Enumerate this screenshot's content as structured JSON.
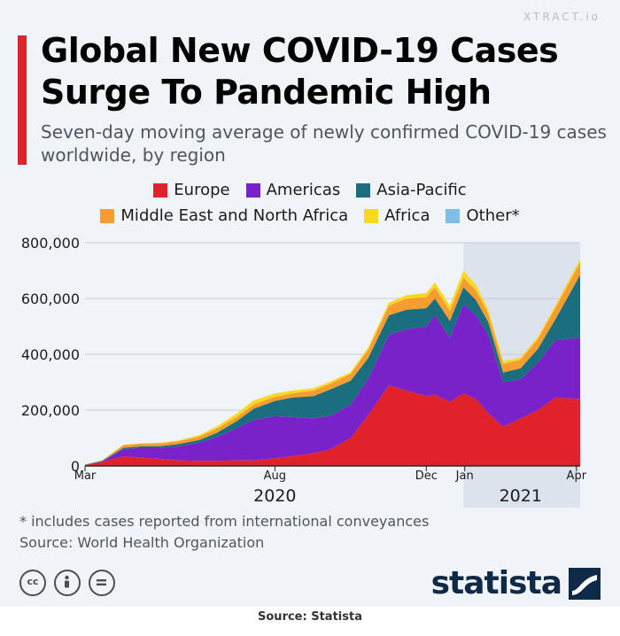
{
  "watermark": "XTRACT.io",
  "title": "Global New COVID-19 Cases Surge To Pandemic High",
  "subtitle": "Seven-day moving average of newly confirmed COVID-19 cases worldwide, by region",
  "note": "* includes cases reported from international conveyances",
  "source_line": "Source: World Health Organization",
  "logo_text": "statista",
  "footer": "Source: Statista",
  "colors": {
    "background": "#f0f3f7",
    "accent_bar": "#e0232a",
    "shaded_period": "#dde3ec",
    "logo": "#0f2a47"
  },
  "icons": [
    "cc-icon",
    "attribution-icon",
    "no-derivatives-icon",
    "statista-logo-icon"
  ],
  "chart_data": {
    "type": "area",
    "stacked": true,
    "title": "Global New COVID-19 Cases Surge To Pandemic High",
    "ylabel": "",
    "xlabel": "",
    "ylim": [
      0,
      800000
    ],
    "yticks": [
      0,
      200000,
      400000,
      600000,
      800000
    ],
    "ytick_labels": [
      "0",
      "200,000",
      "400,000",
      "600,000",
      "800,000"
    ],
    "grid": true,
    "x_start": "2020-03-01",
    "x_end": "2021-04-04",
    "x_ticks": [
      {
        "label": "Mar",
        "date": "2020-03-01"
      },
      {
        "label": "Aug",
        "date": "2020-08-01"
      },
      {
        "label": "Dec",
        "date": "2020-12-01"
      },
      {
        "label": "Jan",
        "date": "2021-01-01"
      },
      {
        "label": "Apr",
        "date": "2021-04-01"
      }
    ],
    "year_labels": [
      {
        "label": "2020",
        "date": "2020-08-01"
      },
      {
        "label": "2021",
        "date": "2021-02-15"
      }
    ],
    "shaded_range": [
      "2020-12-31",
      "2021-04-04"
    ],
    "x": [
      "2020-03-01",
      "2020-03-15",
      "2020-04-01",
      "2020-04-15",
      "2020-05-01",
      "2020-05-15",
      "2020-06-01",
      "2020-06-15",
      "2020-07-01",
      "2020-07-15",
      "2020-08-01",
      "2020-08-15",
      "2020-09-01",
      "2020-09-15",
      "2020-10-01",
      "2020-10-15",
      "2020-11-01",
      "2020-11-15",
      "2020-12-01",
      "2020-12-08",
      "2020-12-20",
      "2020-12-31",
      "2021-01-10",
      "2021-01-20",
      "2021-02-01",
      "2021-02-15",
      "2021-03-01",
      "2021-03-15",
      "2021-04-04"
    ],
    "series": [
      {
        "name": "Europe",
        "color": "#e0232a",
        "values": [
          2000,
          15000,
          35000,
          30000,
          25000,
          20000,
          18000,
          18000,
          20000,
          20000,
          28000,
          35000,
          45000,
          60000,
          100000,
          180000,
          290000,
          270000,
          250000,
          255000,
          230000,
          260000,
          240000,
          190000,
          140000,
          170000,
          200000,
          245000,
          240000
        ]
      },
      {
        "name": "Americas",
        "color": "#7a22c9",
        "values": [
          0,
          1000,
          25000,
          35000,
          40000,
          50000,
          65000,
          85000,
          115000,
          145000,
          150000,
          140000,
          125000,
          120000,
          120000,
          130000,
          180000,
          220000,
          250000,
          285000,
          230000,
          320000,
          300000,
          280000,
          160000,
          140000,
          170000,
          205000,
          220000
        ]
      },
      {
        "name": "Asia-Pacific",
        "color": "#1a6e7e",
        "values": [
          2000,
          2000,
          5000,
          5000,
          6000,
          8000,
          10000,
          15000,
          25000,
          40000,
          55000,
          70000,
          80000,
          95000,
          85000,
          75000,
          70000,
          70000,
          65000,
          60000,
          60000,
          60000,
          55000,
          45000,
          35000,
          40000,
          50000,
          75000,
          225000
        ]
      },
      {
        "name": "Middle East and North Africa",
        "color": "#f59d30",
        "values": [
          1000,
          2000,
          10000,
          10000,
          10000,
          10000,
          12000,
          15000,
          15000,
          15000,
          15000,
          15000,
          20000,
          20000,
          25000,
          30000,
          35000,
          40000,
          40000,
          40000,
          35000,
          35000,
          35000,
          30000,
          30000,
          30000,
          35000,
          40000,
          45000
        ]
      },
      {
        "name": "Africa",
        "color": "#f7d823",
        "values": [
          0,
          0,
          1000,
          1000,
          2000,
          3000,
          5000,
          8000,
          12000,
          15000,
          12000,
          10000,
          8000,
          8000,
          6000,
          8000,
          10000,
          12000,
          15000,
          18000,
          20000,
          25000,
          20000,
          15000,
          10000,
          8000,
          8000,
          10000,
          12000
        ]
      },
      {
        "name": "Other*",
        "color": "#7fbde8",
        "values": [
          0,
          500,
          0,
          0,
          0,
          0,
          0,
          0,
          0,
          0,
          0,
          0,
          0,
          0,
          0,
          0,
          0,
          0,
          0,
          0,
          0,
          0,
          0,
          0,
          0,
          0,
          0,
          0,
          0
        ]
      }
    ]
  }
}
